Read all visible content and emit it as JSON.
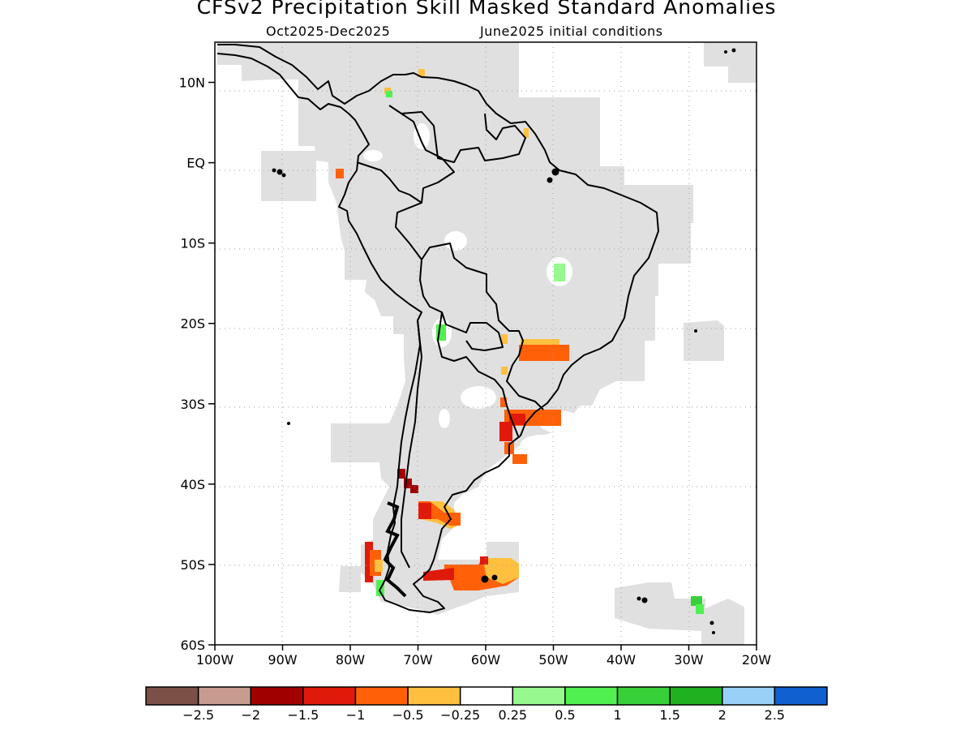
{
  "title": "CFSv2 Precipitation Skill Masked Standard Anomalies",
  "subtitle_period": "Oct2025-Dec2025",
  "subtitle_ic": "June2025 initial conditions",
  "map": {
    "lat_range": [
      -60,
      15
    ],
    "lon_range": [
      -100,
      -20
    ],
    "lat_ticks": [
      {
        "value": 10,
        "label": "10N"
      },
      {
        "value": 0,
        "label": "EQ"
      },
      {
        "value": -10,
        "label": "10S"
      },
      {
        "value": -20,
        "label": "20S"
      },
      {
        "value": -30,
        "label": "30S"
      },
      {
        "value": -40,
        "label": "40S"
      },
      {
        "value": -50,
        "label": "50S"
      },
      {
        "value": -60,
        "label": "60S"
      }
    ],
    "lon_ticks": [
      {
        "value": -100,
        "label": "100W"
      },
      {
        "value": -90,
        "label": "90W"
      },
      {
        "value": -80,
        "label": "80W"
      },
      {
        "value": -70,
        "label": "70W"
      },
      {
        "value": -60,
        "label": "60W"
      },
      {
        "value": -50,
        "label": "50W"
      },
      {
        "value": -40,
        "label": "40W"
      },
      {
        "value": -30,
        "label": "30W"
      },
      {
        "value": -20,
        "label": "20W"
      }
    ],
    "grid": "dotted",
    "mask_color": "#e0e0e0",
    "coast_color": "#000000"
  },
  "colorbar": {
    "colors": [
      "#7b5147",
      "#c89b91",
      "#a00000",
      "#e01a0a",
      "#ff6008",
      "#ffc040",
      "#ffffff",
      "#98f890",
      "#50f050",
      "#38d038",
      "#20b020",
      "#98d0f8",
      "#1060d0"
    ],
    "labels": [
      "−2.5",
      "−2",
      "−1.5",
      "−1",
      "−0.5",
      "−0.25",
      "0.25",
      "0.5",
      "1",
      "1.5",
      "2",
      "2.5"
    ]
  }
}
